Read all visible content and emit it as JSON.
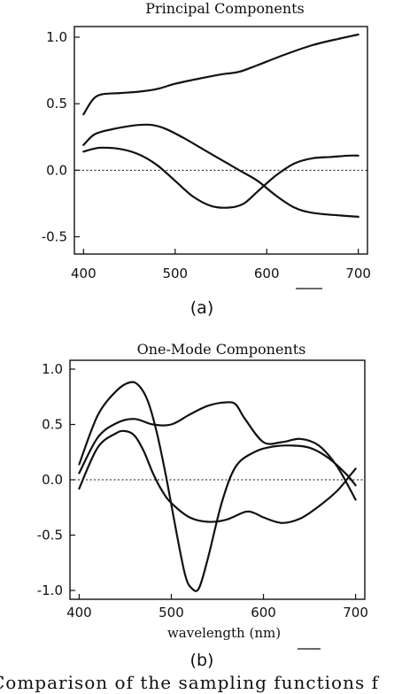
{
  "chart_data": [
    {
      "type": "line",
      "title": "Principal Components",
      "panel_label": "(a)",
      "xlabel": "",
      "ylabel": "",
      "xlim": [
        390,
        710
      ],
      "ylim": [
        -0.63,
        1.08
      ],
      "xticks": [
        400,
        500,
        600,
        700
      ],
      "xtick_labels": [
        "400",
        "500",
        "600",
        "700"
      ],
      "yticks": [
        1.0,
        0.5,
        0.0,
        -0.5
      ],
      "ytick_labels": [
        "1.0",
        "0.5",
        "0.0",
        "-0.5"
      ],
      "zero_line": "dotted",
      "grid": false,
      "legend": "none",
      "series": [
        {
          "x": [
            400,
            410,
            420,
            440,
            460,
            480,
            500,
            520,
            550,
            570,
            590,
            620,
            650,
            680,
            700
          ],
          "y": [
            0.42,
            0.53,
            0.57,
            0.58,
            0.59,
            0.61,
            0.65,
            0.68,
            0.72,
            0.74,
            0.79,
            0.87,
            0.94,
            0.99,
            1.02
          ]
        },
        {
          "x": [
            400,
            410,
            420,
            440,
            460,
            475,
            490,
            510,
            530,
            550,
            570,
            590,
            610,
            630,
            650,
            680,
            700
          ],
          "y": [
            0.19,
            0.26,
            0.29,
            0.32,
            0.34,
            0.34,
            0.31,
            0.24,
            0.16,
            0.08,
            0.0,
            -0.08,
            -0.19,
            -0.28,
            -0.32,
            -0.34,
            -0.35
          ]
        },
        {
          "x": [
            400,
            410,
            420,
            440,
            460,
            480,
            500,
            520,
            540,
            560,
            575,
            590,
            610,
            630,
            650,
            670,
            690,
            700
          ],
          "y": [
            0.14,
            0.16,
            0.17,
            0.16,
            0.12,
            0.04,
            -0.08,
            -0.2,
            -0.27,
            -0.28,
            -0.25,
            -0.16,
            -0.04,
            0.05,
            0.09,
            0.1,
            0.11,
            0.11
          ]
        }
      ]
    },
    {
      "type": "line",
      "title": "One-Mode Components",
      "panel_label": "(b)",
      "xlabel": "wavelength (nm)",
      "ylabel": "",
      "xlim": [
        390,
        710
      ],
      "ylim": [
        -1.08,
        1.08
      ],
      "xticks": [
        400,
        500,
        600,
        700
      ],
      "xtick_labels": [
        "400",
        "500",
        "600",
        "700"
      ],
      "yticks": [
        1.0,
        0.5,
        0.0,
        -0.5,
        -1.0
      ],
      "ytick_labels": [
        "1.0",
        "0.5",
        "0.0",
        "-0.5",
        "-1.0"
      ],
      "zero_line": "dotted",
      "grid": false,
      "legend": "none",
      "series": [
        {
          "x": [
            400,
            420,
            440,
            455,
            465,
            475,
            485,
            495,
            505,
            515,
            522,
            530,
            540,
            555,
            570,
            590,
            610,
            630,
            650,
            670,
            690,
            700
          ],
          "y": [
            0.14,
            0.58,
            0.8,
            0.88,
            0.85,
            0.7,
            0.4,
            0.0,
            -0.45,
            -0.86,
            -0.98,
            -0.98,
            -0.7,
            -0.2,
            0.12,
            0.25,
            0.3,
            0.31,
            0.29,
            0.2,
            0.05,
            -0.05
          ]
        },
        {
          "x": [
            400,
            420,
            440,
            460,
            480,
            500,
            520,
            540,
            560,
            570,
            580,
            600,
            620,
            640,
            660,
            680,
            700
          ],
          "y": [
            0.06,
            0.38,
            0.51,
            0.55,
            0.5,
            0.5,
            0.59,
            0.67,
            0.7,
            0.68,
            0.55,
            0.34,
            0.34,
            0.37,
            0.31,
            0.12,
            -0.18
          ]
        },
        {
          "x": [
            400,
            420,
            440,
            450,
            460,
            470,
            480,
            490,
            500,
            520,
            540,
            560,
            580,
            590,
            600,
            620,
            640,
            660,
            680,
            695,
            700
          ],
          "y": [
            -0.08,
            0.29,
            0.42,
            0.44,
            0.4,
            0.26,
            0.06,
            -0.1,
            -0.21,
            -0.34,
            -0.38,
            -0.36,
            -0.29,
            -0.3,
            -0.34,
            -0.39,
            -0.35,
            -0.24,
            -0.1,
            0.05,
            0.1
          ]
        }
      ]
    }
  ],
  "caption": "Comparison of the sampling functions f"
}
